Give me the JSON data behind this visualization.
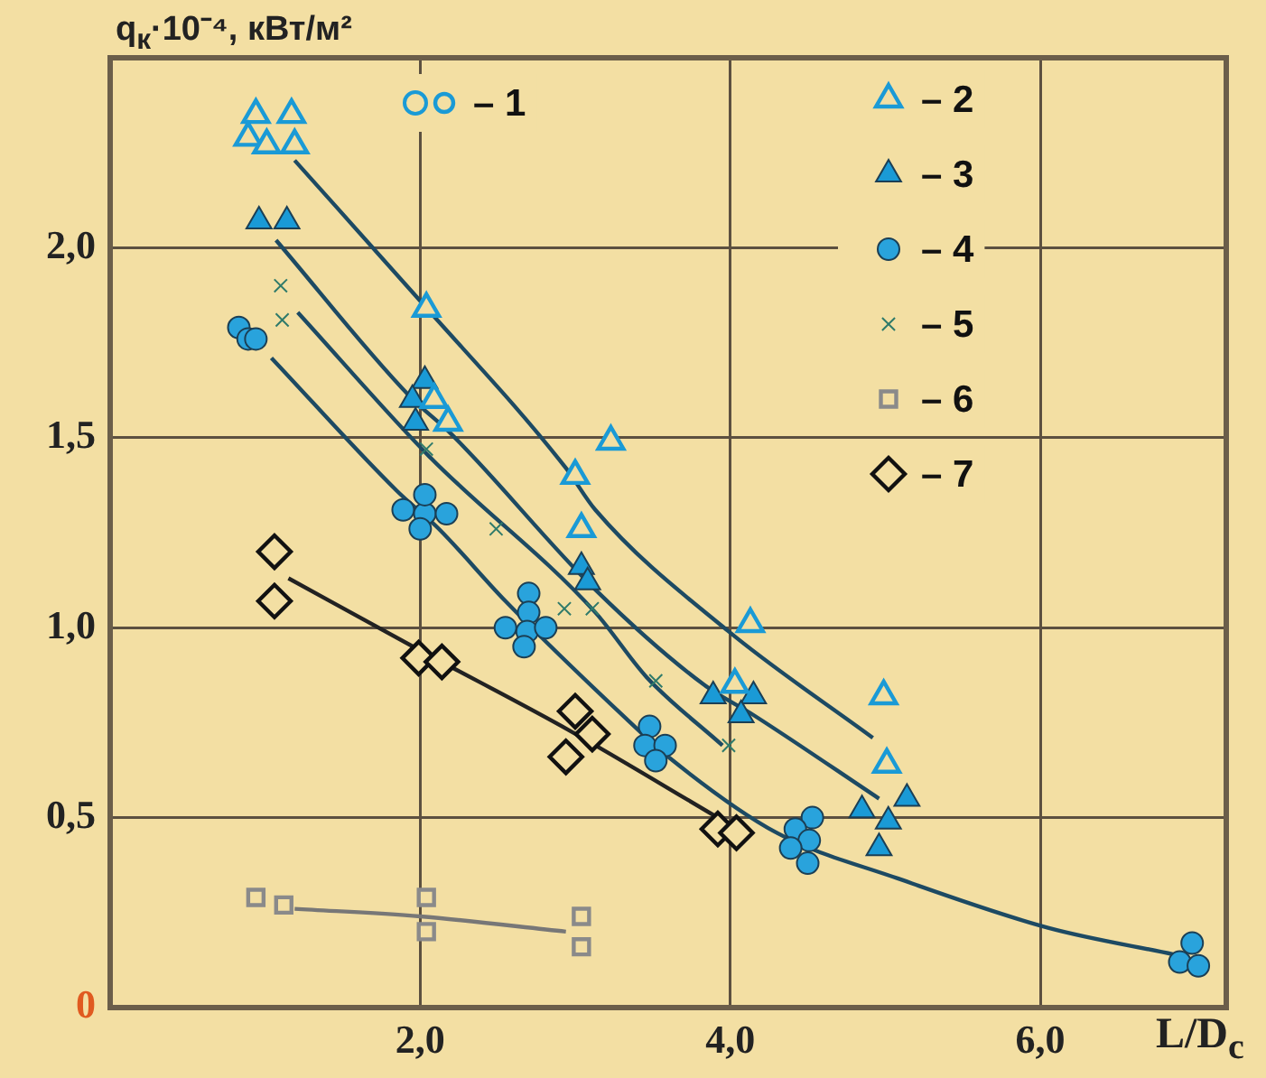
{
  "chart_data": {
    "type": "scatter",
    "ylabel": "q$_{к}$·10⁻⁴, кВт/м²",
    "xlabel": "L/D$_{c}$",
    "xlim": [
      0,
      7.2
    ],
    "ylim": [
      0,
      2.5
    ],
    "xticks": [
      {
        "value": 2,
        "label": "2,0"
      },
      {
        "value": 4,
        "label": "4,0"
      },
      {
        "value": 6,
        "label": "6,0"
      }
    ],
    "yticks": [
      {
        "value": 0,
        "label": "0"
      },
      {
        "value": 0.5,
        "label": "0,5"
      },
      {
        "value": 1,
        "label": "1,0"
      },
      {
        "value": 1.5,
        "label": "1,5"
      },
      {
        "value": 2,
        "label": "2,0"
      }
    ],
    "grid": true,
    "legend": "top right",
    "series": [
      {
        "name": "– 1",
        "marker": "circle-open",
        "color": "#1a9ad6"
      },
      {
        "name": "– 2",
        "marker": "triangle-open",
        "color": "#1a9ad6",
        "x": [
          0.94,
          1.17,
          0.89,
          1.01,
          1.19,
          2.04,
          2.09,
          2.18,
          3.23,
          3.0,
          3.04,
          4.13,
          4.03,
          4.99,
          5.01
        ],
        "values": [
          2.35,
          2.35,
          2.29,
          2.27,
          2.27,
          1.84,
          1.6,
          1.54,
          1.49,
          1.4,
          1.26,
          1.01,
          0.85,
          0.82,
          0.64
        ]
      },
      {
        "name": "– 3",
        "marker": "triangle",
        "color": "#1a9ad6",
        "x": [
          0.96,
          1.14,
          2.03,
          1.95,
          1.97,
          3.04,
          3.08,
          3.89,
          4.15,
          4.07,
          4.85,
          5.14,
          5.02,
          4.96
        ],
        "values": [
          2.07,
          2.07,
          1.65,
          1.6,
          1.54,
          1.16,
          1.12,
          0.82,
          0.82,
          0.77,
          0.52,
          0.55,
          0.49,
          0.42
        ]
      },
      {
        "name": "– 4",
        "marker": "circle",
        "color": "#29a3dc",
        "x": [
          0.83,
          0.89,
          0.94,
          1.89,
          2.03,
          2.17,
          2.0,
          2.03,
          2.7,
          2.7,
          2.55,
          2.69,
          2.81,
          2.67,
          3.48,
          3.45,
          3.58,
          3.52,
          4.53,
          4.42,
          4.51,
          4.39,
          4.5,
          6.98,
          6.9,
          7.02
        ],
        "values": [
          1.79,
          1.76,
          1.76,
          1.31,
          1.3,
          1.3,
          1.26,
          1.35,
          1.09,
          1.04,
          1.0,
          0.99,
          1.0,
          0.95,
          0.74,
          0.69,
          0.69,
          0.65,
          0.5,
          0.47,
          0.44,
          0.42,
          0.38,
          0.17,
          0.12,
          0.11
        ]
      },
      {
        "name": "– 5",
        "marker": "cross",
        "color": "#2f7a6a",
        "x": [
          1.1,
          1.11,
          2.04,
          2.49,
          2.93,
          3.11,
          3.52,
          3.99
        ],
        "values": [
          1.9,
          1.81,
          1.47,
          1.26,
          1.05,
          1.05,
          0.86,
          0.69
        ]
      },
      {
        "name": "– 6",
        "marker": "square-open",
        "color": "#8a8a8a",
        "x": [
          0.94,
          1.12,
          2.04,
          2.04,
          3.04,
          3.04
        ],
        "values": [
          0.29,
          0.27,
          0.29,
          0.2,
          0.24,
          0.16
        ]
      },
      {
        "name": "– 7",
        "marker": "diamond-open",
        "color": "#111111",
        "x": [
          1.06,
          1.06,
          1.99,
          2.14,
          3.0,
          3.11,
          2.94,
          3.92,
          4.04
        ],
        "values": [
          1.2,
          1.07,
          0.92,
          0.91,
          0.78,
          0.72,
          0.66,
          0.47,
          0.46
        ]
      },
      {
        "type": "line",
        "marker": "none",
        "color": "#1d4a63",
        "x": [
          1.19,
          2.0,
          2.94,
          3.13,
          3.99,
          4.92
        ],
        "values": [
          2.23,
          1.86,
          1.42,
          1.31,
          0.99,
          0.71
        ]
      },
      {
        "type": "line",
        "marker": "none",
        "color": "#1d4a63",
        "x": [
          1.07,
          1.93,
          2.2,
          3.13,
          3.83,
          4.15,
          4.96
        ],
        "values": [
          2.02,
          1.61,
          1.51,
          1.1,
          0.85,
          0.77,
          0.55
        ]
      },
      {
        "type": "line",
        "marker": "none",
        "color": "#1d4a63",
        "x": [
          1.04,
          1.85,
          2.12,
          2.55,
          3.33,
          3.6,
          4.3,
          5.08,
          6.05,
          6.86
        ],
        "values": [
          1.71,
          1.36,
          1.26,
          1.07,
          0.76,
          0.66,
          0.46,
          0.34,
          0.21,
          0.14
        ]
      },
      {
        "type": "line",
        "marker": "none",
        "color": "#1d4a63",
        "x": [
          1.21,
          2.06,
          3.13,
          3.46,
          3.95
        ],
        "values": [
          1.83,
          1.45,
          1.04,
          0.87,
          0.69
        ]
      },
      {
        "type": "line",
        "marker": "none",
        "color": "#777777",
        "x": [
          1.19,
          2.0,
          2.94
        ],
        "values": [
          0.26,
          0.24,
          0.2
        ]
      },
      {
        "type": "line",
        "marker": "none",
        "color": "#222222",
        "x": [
          1.15,
          2.0,
          2.96,
          3.92
        ],
        "values": [
          1.13,
          0.94,
          0.73,
          0.5
        ]
      }
    ]
  }
}
